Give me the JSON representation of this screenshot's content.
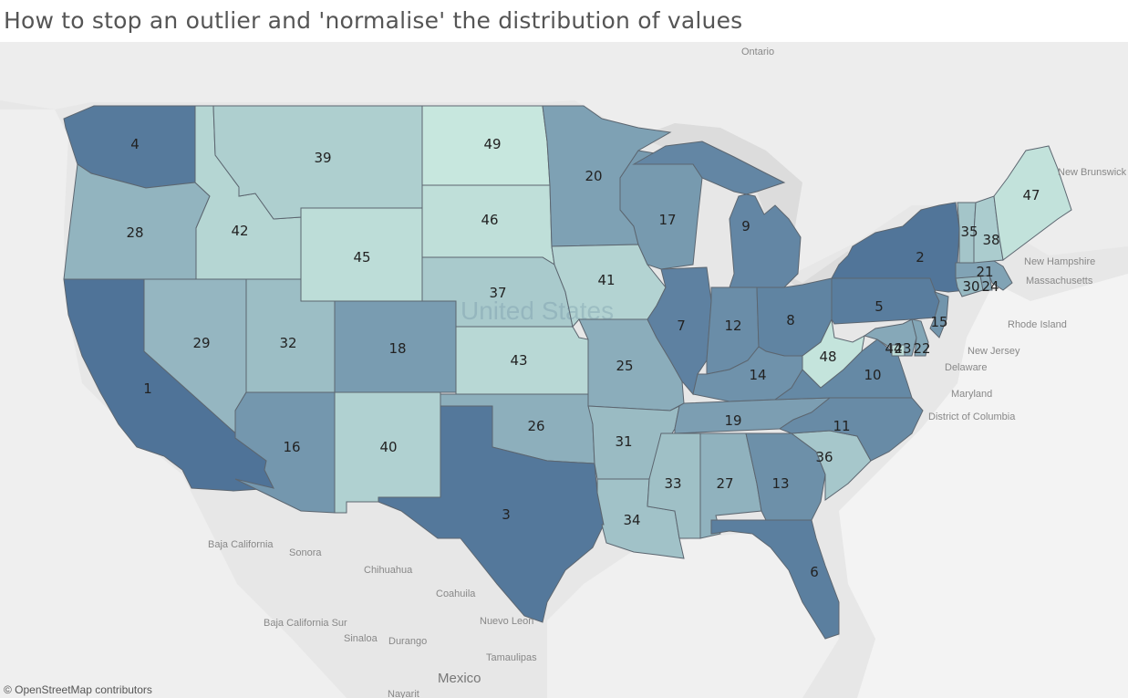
{
  "title": "How to stop an outlier and 'normalise' the distribution  of values",
  "attribution": "© OpenStreetMap contributors",
  "palette": {
    "low": "#c9e9df",
    "high": "#4f7398"
  },
  "max_rank": 50,
  "country_label": "United States",
  "geo_labels": {
    "ontario": "Ontario",
    "new_brunswick": "New Brunswick",
    "new_hampshire": "New Hampshire",
    "massachusetts": "Massachusetts",
    "rhode_island": "Rhode Island",
    "new_jersey": "New Jersey",
    "delaware": "Delaware",
    "maryland": "Maryland",
    "dc": "District of Columbia",
    "baja_california": "Baja California",
    "sonora": "Sonora",
    "chihuahua": "Chihuahua",
    "coahuila": "Coahuila",
    "nuevo_leon": "Nuevo Leon",
    "tamaulipas": "Tamaulipas",
    "durango": "Durango",
    "sinaloa": "Sinaloa",
    "baja_california_sur": "Baja California Sur",
    "mexico": "Mexico",
    "nayarit": "Nayarit"
  },
  "states": [
    {
      "id": "WA",
      "rank": 4
    },
    {
      "id": "OR",
      "rank": 28
    },
    {
      "id": "CA",
      "rank": 1
    },
    {
      "id": "ID",
      "rank": 42
    },
    {
      "id": "NV",
      "rank": 29
    },
    {
      "id": "MT",
      "rank": 39
    },
    {
      "id": "WY",
      "rank": 45
    },
    {
      "id": "UT",
      "rank": 32
    },
    {
      "id": "AZ",
      "rank": 16
    },
    {
      "id": "CO",
      "rank": 18
    },
    {
      "id": "NM",
      "rank": 40
    },
    {
      "id": "ND",
      "rank": 49
    },
    {
      "id": "SD",
      "rank": 46
    },
    {
      "id": "NE",
      "rank": 37
    },
    {
      "id": "KS",
      "rank": 43
    },
    {
      "id": "OK",
      "rank": 26
    },
    {
      "id": "TX",
      "rank": 3
    },
    {
      "id": "MN",
      "rank": 20
    },
    {
      "id": "IA",
      "rank": 41
    },
    {
      "id": "MO",
      "rank": 25
    },
    {
      "id": "AR",
      "rank": 31
    },
    {
      "id": "LA",
      "rank": 34
    },
    {
      "id": "WI",
      "rank": 17
    },
    {
      "id": "IL",
      "rank": 7
    },
    {
      "id": "MI",
      "rank": 9
    },
    {
      "id": "IN",
      "rank": 12
    },
    {
      "id": "OH",
      "rank": 8
    },
    {
      "id": "KY",
      "rank": 14
    },
    {
      "id": "TN",
      "rank": 19
    },
    {
      "id": "MS",
      "rank": 33
    },
    {
      "id": "AL",
      "rank": 27
    },
    {
      "id": "GA",
      "rank": 13
    },
    {
      "id": "FL",
      "rank": 6
    },
    {
      "id": "SC",
      "rank": 36
    },
    {
      "id": "NC",
      "rank": 11
    },
    {
      "id": "VA",
      "rank": 10
    },
    {
      "id": "WV",
      "rank": 48
    },
    {
      "id": "PA",
      "rank": 5
    },
    {
      "id": "NY",
      "rank": 2
    },
    {
      "id": "MD",
      "rank": 23
    },
    {
      "id": "DE",
      "rank": 22
    },
    {
      "id": "DC",
      "rank": 44
    },
    {
      "id": "NJ",
      "rank": 15
    },
    {
      "id": "CT",
      "rank": 30
    },
    {
      "id": "RI",
      "rank": 24
    },
    {
      "id": "MA",
      "rank": 21
    },
    {
      "id": "VT",
      "rank": 35
    },
    {
      "id": "NH",
      "rank": 38
    },
    {
      "id": "ME",
      "rank": 47
    }
  ]
}
